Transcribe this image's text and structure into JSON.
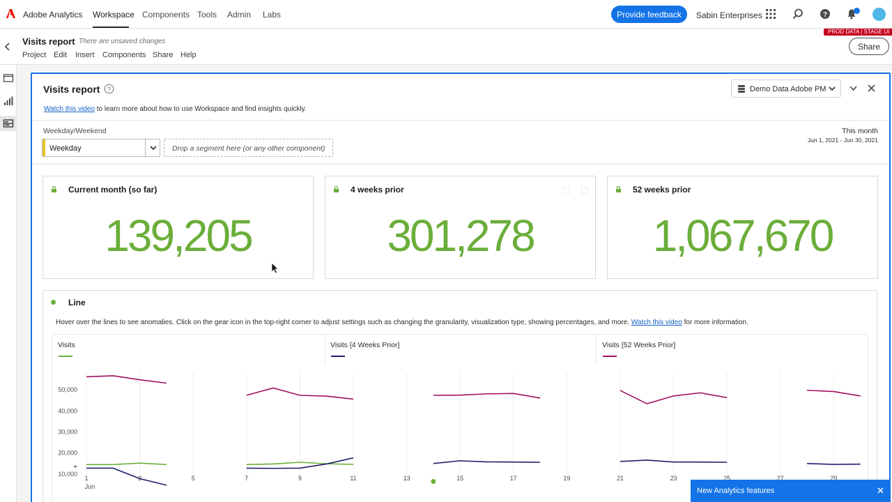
{
  "topnav": {
    "brand": "Adobe Analytics",
    "items": [
      {
        "label": "Workspace",
        "active": true
      },
      {
        "label": "Components"
      },
      {
        "label": "Tools"
      },
      {
        "label": "Admin"
      },
      {
        "label": "Labs"
      }
    ],
    "feedback_label": "Provide feedback",
    "org": "Sabin Enterprises",
    "icons": [
      "apps-grid-icon",
      "search-icon",
      "help-icon",
      "bell-icon",
      "avatar"
    ]
  },
  "project": {
    "title": "Visits report",
    "unsaved": "There are unsaved changes",
    "menu": [
      "Project",
      "Edit",
      "Insert",
      "Components",
      "Share",
      "Help"
    ],
    "badge": "PROD DATA | STAGE UI",
    "share_label": "Share"
  },
  "panel": {
    "title": "Visits report",
    "video_link": "Watch this video",
    "info_text": " to learn more about how to use Workspace and find insights quickly.",
    "report_suite": "Demo Data Adobe PM",
    "dropzone_label": "Weekday/Weekend",
    "segment_value": "Weekday",
    "drop_placeholder": "Drop a segment here (or any other component)",
    "date_title": "This month",
    "date_range": "Jun 1, 2021 - Jun 30, 2021"
  },
  "cards": [
    {
      "title": "Current month (so far)",
      "value": "139,205"
    },
    {
      "title": "4 weeks prior",
      "value": "301,278"
    },
    {
      "title": "52 weeks prior",
      "value": "1,067,670"
    }
  ],
  "viz": {
    "title": "Line",
    "description": "Hover over the lines to see anomalies. Click on the gear icon in the top-right corner to adjust settings such as changing the granularity, visualization type, showing percentages, and more. ",
    "video_link": "Watch this video",
    "description_tail": " for more information."
  },
  "chart_data": {
    "type": "line",
    "x": [
      1,
      2,
      3,
      4,
      5,
      6,
      7,
      8,
      9,
      10,
      11,
      12,
      13,
      14,
      15,
      16,
      17,
      18,
      19,
      20,
      21,
      22,
      23,
      24,
      25,
      26,
      27,
      28,
      29,
      30
    ],
    "x_ticks": [
      "1",
      "3",
      "5",
      "7",
      "9",
      "11",
      "13",
      "15",
      "17",
      "19",
      "21",
      "23",
      "25",
      "27",
      "29"
    ],
    "x_sublabel": "Jun",
    "y_ticks": [
      "10,000",
      "20,000",
      "30,000",
      "40,000",
      "50,000"
    ],
    "ylim": [
      5000,
      58000
    ],
    "series": [
      {
        "name": "Visits",
        "color": "#6bae3a",
        "values": [
          14500,
          14500,
          15200,
          14500,
          null,
          null,
          14500,
          14800,
          15600,
          14900,
          14600,
          null,
          null,
          6500,
          null,
          null,
          null,
          null,
          null,
          null,
          null,
          null,
          null,
          null,
          null,
          null,
          null,
          null,
          null,
          null
        ]
      },
      {
        "name": "Visits [4 Weeks Prior]",
        "color": "#1f1f6e",
        "values": [
          12800,
          12800,
          7800,
          4700,
          null,
          null,
          12800,
          12700,
          12800,
          14800,
          17700,
          null,
          null,
          15000,
          16300,
          15800,
          15700,
          15600,
          null,
          null,
          16000,
          16600,
          15700,
          15700,
          15600,
          null,
          null,
          15000,
          14600,
          14700
        ]
      },
      {
        "name": "Visits [52 Weeks Prior]",
        "color": "#a0105e",
        "values": [
          56200,
          56700,
          54800,
          53200,
          null,
          null,
          47400,
          50900,
          47400,
          47000,
          45600,
          null,
          null,
          47400,
          47500,
          48100,
          48300,
          46100,
          null,
          null,
          49700,
          43400,
          47100,
          48600,
          46300,
          null,
          null,
          49800,
          49200,
          47100
        ]
      }
    ]
  },
  "toast": {
    "label": "New Analytics features"
  }
}
